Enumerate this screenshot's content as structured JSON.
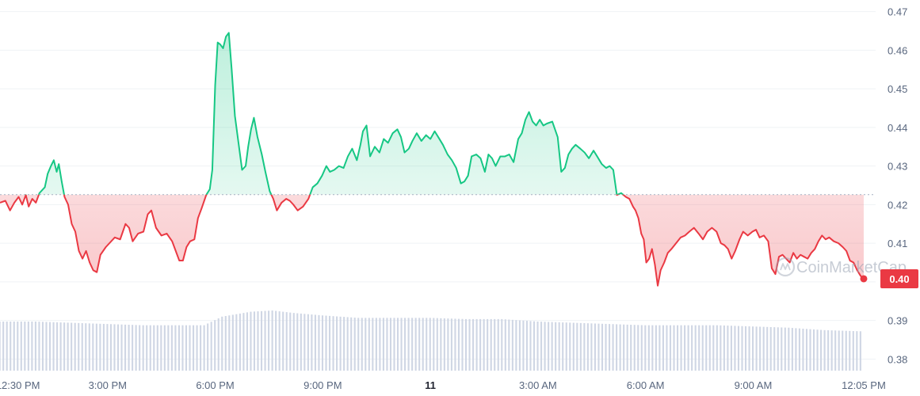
{
  "chart_data": {
    "type": "line",
    "title": "",
    "xlabel": "",
    "ylabel": "",
    "baseline": 0.4226,
    "ylim": [
      0.377,
      0.473
    ],
    "y_ticks": [
      0.47,
      0.46,
      0.45,
      0.44,
      0.43,
      0.42,
      0.41,
      0.4,
      0.39,
      0.38
    ],
    "x_ticks": [
      {
        "t": 0.5,
        "label": "12:30 PM",
        "bold": false
      },
      {
        "t": 3.0,
        "label": "3:00 PM",
        "bold": false
      },
      {
        "t": 6.0,
        "label": "6:00 PM",
        "bold": false
      },
      {
        "t": 9.0,
        "label": "9:00 PM",
        "bold": false
      },
      {
        "t": 12.0,
        "label": "11",
        "bold": true
      },
      {
        "t": 15.0,
        "label": "3:00 AM",
        "bold": false
      },
      {
        "t": 18.0,
        "label": "6:00 AM",
        "bold": false
      },
      {
        "t": 21.0,
        "label": "9:00 AM",
        "bold": false
      },
      {
        "t": 24.083,
        "label": "12:05 PM",
        "bold": false
      }
    ],
    "x_unit": "hours from 12:00 PM",
    "xlim": [
      0.0,
      24.15
    ],
    "last_price_label": "0.40",
    "watermark": "CoinMarketCap",
    "colors": {
      "up": "#16c784",
      "down": "#ea3943",
      "volume": "#cfd6e4",
      "baseline": "#a6b0c3"
    },
    "series": [
      {
        "values": [
          [
            0.0,
            0.4205
          ],
          [
            0.15,
            0.421
          ],
          [
            0.28,
            0.4185
          ],
          [
            0.4,
            0.4205
          ],
          [
            0.52,
            0.422
          ],
          [
            0.62,
            0.42
          ],
          [
            0.72,
            0.4225
          ],
          [
            0.8,
            0.4195
          ],
          [
            0.9,
            0.4215
          ],
          [
            1.0,
            0.4205
          ],
          [
            1.1,
            0.423
          ],
          [
            1.25,
            0.4245
          ],
          [
            1.33,
            0.428
          ],
          [
            1.42,
            0.43
          ],
          [
            1.5,
            0.4315
          ],
          [
            1.58,
            0.4285
          ],
          [
            1.64,
            0.4305
          ],
          [
            1.72,
            0.426
          ],
          [
            1.8,
            0.422
          ],
          [
            1.9,
            0.42
          ],
          [
            2.0,
            0.415
          ],
          [
            2.1,
            0.413
          ],
          [
            2.2,
            0.408
          ],
          [
            2.3,
            0.406
          ],
          [
            2.4,
            0.408
          ],
          [
            2.5,
            0.405
          ],
          [
            2.6,
            0.403
          ],
          [
            2.7,
            0.4025
          ],
          [
            2.8,
            0.407
          ],
          [
            2.95,
            0.409
          ],
          [
            3.05,
            0.41
          ],
          [
            3.2,
            0.4115
          ],
          [
            3.35,
            0.411
          ],
          [
            3.5,
            0.415
          ],
          [
            3.6,
            0.414
          ],
          [
            3.7,
            0.4105
          ],
          [
            3.85,
            0.4125
          ],
          [
            4.0,
            0.413
          ],
          [
            4.12,
            0.4175
          ],
          [
            4.22,
            0.4185
          ],
          [
            4.35,
            0.414
          ],
          [
            4.5,
            0.412
          ],
          [
            4.65,
            0.4125
          ],
          [
            4.8,
            0.4105
          ],
          [
            4.9,
            0.408
          ],
          [
            5.0,
            0.4055
          ],
          [
            5.1,
            0.4055
          ],
          [
            5.2,
            0.409
          ],
          [
            5.3,
            0.4105
          ],
          [
            5.42,
            0.411
          ],
          [
            5.52,
            0.4165
          ],
          [
            5.62,
            0.419
          ],
          [
            5.75,
            0.4225
          ],
          [
            5.85,
            0.424
          ],
          [
            5.92,
            0.429
          ],
          [
            6.0,
            0.451
          ],
          [
            6.07,
            0.462
          ],
          [
            6.14,
            0.4615
          ],
          [
            6.22,
            0.4605
          ],
          [
            6.3,
            0.4635
          ],
          [
            6.38,
            0.4645
          ],
          [
            6.46,
            0.455
          ],
          [
            6.55,
            0.443
          ],
          [
            6.65,
            0.436
          ],
          [
            6.75,
            0.429
          ],
          [
            6.85,
            0.43
          ],
          [
            6.92,
            0.435
          ],
          [
            7.0,
            0.4395
          ],
          [
            7.08,
            0.4425
          ],
          [
            7.18,
            0.4375
          ],
          [
            7.3,
            0.433
          ],
          [
            7.4,
            0.4285
          ],
          [
            7.52,
            0.4235
          ],
          [
            7.62,
            0.4215
          ],
          [
            7.72,
            0.4185
          ],
          [
            7.85,
            0.4205
          ],
          [
            7.98,
            0.4215
          ],
          [
            8.08,
            0.421
          ],
          [
            8.18,
            0.42
          ],
          [
            8.3,
            0.4185
          ],
          [
            8.45,
            0.4195
          ],
          [
            8.6,
            0.4215
          ],
          [
            8.72,
            0.4245
          ],
          [
            8.85,
            0.4255
          ],
          [
            8.98,
            0.4275
          ],
          [
            9.1,
            0.43
          ],
          [
            9.2,
            0.4285
          ],
          [
            9.32,
            0.429
          ],
          [
            9.45,
            0.43
          ],
          [
            9.58,
            0.4295
          ],
          [
            9.7,
            0.4325
          ],
          [
            9.82,
            0.4345
          ],
          [
            9.95,
            0.4315
          ],
          [
            10.05,
            0.4355
          ],
          [
            10.12,
            0.439
          ],
          [
            10.22,
            0.4405
          ],
          [
            10.32,
            0.4325
          ],
          [
            10.45,
            0.435
          ],
          [
            10.58,
            0.4335
          ],
          [
            10.7,
            0.437
          ],
          [
            10.82,
            0.436
          ],
          [
            10.95,
            0.4385
          ],
          [
            11.08,
            0.4395
          ],
          [
            11.18,
            0.4375
          ],
          [
            11.28,
            0.4335
          ],
          [
            11.4,
            0.4345
          ],
          [
            11.5,
            0.4365
          ],
          [
            11.62,
            0.4385
          ],
          [
            11.75,
            0.4365
          ],
          [
            11.88,
            0.438
          ],
          [
            12.0,
            0.437
          ],
          [
            12.12,
            0.439
          ],
          [
            12.22,
            0.4375
          ],
          [
            12.35,
            0.4355
          ],
          [
            12.48,
            0.433
          ],
          [
            12.6,
            0.4315
          ],
          [
            12.72,
            0.4295
          ],
          [
            12.85,
            0.4255
          ],
          [
            12.95,
            0.426
          ],
          [
            13.05,
            0.4275
          ],
          [
            13.15,
            0.4325
          ],
          [
            13.28,
            0.433
          ],
          [
            13.4,
            0.432
          ],
          [
            13.52,
            0.4285
          ],
          [
            13.62,
            0.433
          ],
          [
            13.72,
            0.432
          ],
          [
            13.82,
            0.43
          ],
          [
            13.95,
            0.4325
          ],
          [
            14.08,
            0.4325
          ],
          [
            14.2,
            0.433
          ],
          [
            14.32,
            0.431
          ],
          [
            14.45,
            0.437
          ],
          [
            14.55,
            0.4385
          ],
          [
            14.65,
            0.442
          ],
          [
            14.75,
            0.444
          ],
          [
            14.85,
            0.4415
          ],
          [
            14.95,
            0.4405
          ],
          [
            15.05,
            0.442
          ],
          [
            15.15,
            0.4405
          ],
          [
            15.25,
            0.441
          ],
          [
            15.4,
            0.4415
          ],
          [
            15.55,
            0.4375
          ],
          [
            15.65,
            0.4285
          ],
          [
            15.75,
            0.4295
          ],
          [
            15.85,
            0.433
          ],
          [
            15.95,
            0.4345
          ],
          [
            16.05,
            0.4355
          ],
          [
            16.18,
            0.4345
          ],
          [
            16.3,
            0.4335
          ],
          [
            16.42,
            0.432
          ],
          [
            16.55,
            0.434
          ],
          [
            16.65,
            0.4325
          ],
          [
            16.78,
            0.4305
          ],
          [
            16.9,
            0.4295
          ],
          [
            17.0,
            0.43
          ],
          [
            17.1,
            0.429
          ],
          [
            17.2,
            0.4225
          ],
          [
            17.32,
            0.423
          ],
          [
            17.45,
            0.422
          ],
          [
            17.55,
            0.4215
          ],
          [
            17.65,
            0.4195
          ],
          [
            17.72,
            0.4185
          ],
          [
            17.8,
            0.4165
          ],
          [
            17.88,
            0.4125
          ],
          [
            17.95,
            0.411
          ],
          [
            18.02,
            0.405
          ],
          [
            18.1,
            0.406
          ],
          [
            18.18,
            0.4085
          ],
          [
            18.26,
            0.4045
          ],
          [
            18.34,
            0.399
          ],
          [
            18.42,
            0.403
          ],
          [
            18.52,
            0.405
          ],
          [
            18.62,
            0.4075
          ],
          [
            18.72,
            0.4085
          ],
          [
            18.85,
            0.41
          ],
          [
            18.98,
            0.4115
          ],
          [
            19.1,
            0.412
          ],
          [
            19.22,
            0.413
          ],
          [
            19.35,
            0.414
          ],
          [
            19.48,
            0.4125
          ],
          [
            19.6,
            0.411
          ],
          [
            19.72,
            0.413
          ],
          [
            19.85,
            0.414
          ],
          [
            19.98,
            0.413
          ],
          [
            20.1,
            0.41
          ],
          [
            20.2,
            0.4095
          ],
          [
            20.3,
            0.4085
          ],
          [
            20.4,
            0.406
          ],
          [
            20.5,
            0.408
          ],
          [
            20.62,
            0.411
          ],
          [
            20.72,
            0.413
          ],
          [
            20.85,
            0.412
          ],
          [
            20.98,
            0.413
          ],
          [
            21.08,
            0.4135
          ],
          [
            21.18,
            0.4115
          ],
          [
            21.3,
            0.412
          ],
          [
            21.42,
            0.4105
          ],
          [
            21.52,
            0.4035
          ],
          [
            21.62,
            0.402
          ],
          [
            21.72,
            0.4065
          ],
          [
            21.82,
            0.407
          ],
          [
            21.92,
            0.406
          ],
          [
            22.02,
            0.405
          ],
          [
            22.12,
            0.4075
          ],
          [
            22.22,
            0.406
          ],
          [
            22.32,
            0.407
          ],
          [
            22.42,
            0.4065
          ],
          [
            22.52,
            0.406
          ],
          [
            22.62,
            0.4075
          ],
          [
            22.72,
            0.4085
          ],
          [
            22.82,
            0.4105
          ],
          [
            22.92,
            0.412
          ],
          [
            23.02,
            0.411
          ],
          [
            23.12,
            0.4115
          ],
          [
            23.25,
            0.4105
          ],
          [
            23.38,
            0.41
          ],
          [
            23.5,
            0.409
          ],
          [
            23.6,
            0.408
          ],
          [
            23.7,
            0.4055
          ],
          [
            23.8,
            0.405
          ],
          [
            23.9,
            0.403
          ],
          [
            24.0,
            0.4015
          ],
          [
            24.083,
            0.4008
          ]
        ]
      }
    ],
    "volume": {
      "ylim": [
        0,
        100
      ],
      "step_hours": 0.1,
      "values": [
        [
          0.0,
          40
        ],
        [
          1.0,
          40
        ],
        [
          2.0,
          39
        ],
        [
          3.0,
          38
        ],
        [
          4.0,
          37
        ],
        [
          5.0,
          37
        ],
        [
          5.7,
          37
        ],
        [
          6.2,
          44
        ],
        [
          7.0,
          48
        ],
        [
          7.6,
          49
        ],
        [
          8.2,
          47
        ],
        [
          9.0,
          45
        ],
        [
          10.0,
          43
        ],
        [
          11.0,
          43
        ],
        [
          12.0,
          43
        ],
        [
          13.0,
          42
        ],
        [
          14.0,
          42
        ],
        [
          15.0,
          40
        ],
        [
          16.0,
          39
        ],
        [
          17.0,
          38
        ],
        [
          18.0,
          37
        ],
        [
          19.0,
          37
        ],
        [
          20.0,
          37
        ],
        [
          21.0,
          36
        ],
        [
          22.0,
          35
        ],
        [
          23.0,
          33
        ],
        [
          24.083,
          32
        ]
      ]
    }
  }
}
